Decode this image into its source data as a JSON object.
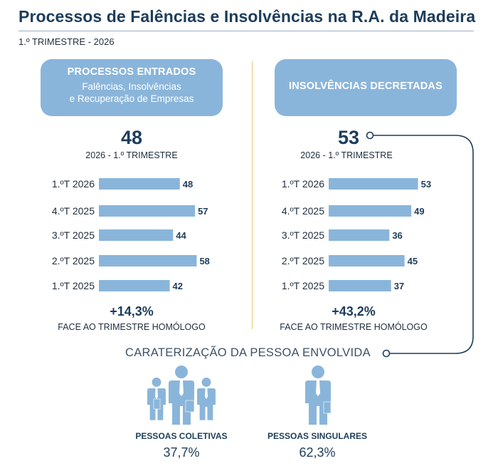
{
  "title": "Processos de Falências e Insolvências na R.A. da Madeira",
  "subtitle": "1.º TRIMESTRE - 2026",
  "left": {
    "box_title": "PROCESSOS ENTRADOS",
    "box_line1": "Falências, Insolvências",
    "box_line2": "e Recuperação de Empresas",
    "big_value": "48",
    "period": "2026 - 1.º TRIMESTRE",
    "change": "+14,3%",
    "change_label": "FACE AO TRIMESTRE HOMÓLOGO"
  },
  "right": {
    "box_title": "INSOLVÊNCIAS DECRETADAS",
    "big_value": "53",
    "period": "2026 - 1.º TRIMESTRE",
    "change": "+43,2%",
    "change_label": "FACE AO TRIMESTRE HOMÓLOGO"
  },
  "caracterizacao": {
    "title": "CARATERIZAÇÃO DA PESSOA ENVOLVIDA",
    "coletivas_label": "PESSOAS COLETIVAS",
    "coletivas_value": "37,7%",
    "singulares_label": "PESSOAS SINGULARES",
    "singulares_value": "62,3%"
  },
  "colors": {
    "bar": "#8ab5da",
    "dark": "#1d3d5c",
    "divider": "#e9c877"
  },
  "chart_data": [
    {
      "type": "bar",
      "orientation": "horizontal",
      "title": "PROCESSOS ENTRADOS",
      "categories": [
        "1.ºT 2026",
        "4.ºT 2025",
        "3.ºT 2025",
        "2.ºT 2025",
        "1.ºT 2025"
      ],
      "values": [
        48,
        57,
        44,
        58,
        42
      ]
    },
    {
      "type": "bar",
      "orientation": "horizontal",
      "title": "INSOLVÊNCIAS DECRETADAS",
      "categories": [
        "1.ºT 2026",
        "4.ºT 2025",
        "3.ºT 2025",
        "2.ºT 2025",
        "1.ºT 2025"
      ],
      "values": [
        53,
        49,
        36,
        45,
        37
      ]
    }
  ]
}
